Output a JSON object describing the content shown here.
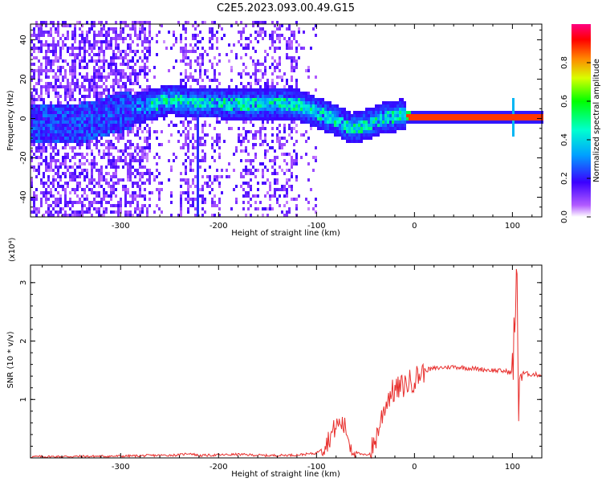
{
  "title": "C2E5.2023.093.00.49.G15",
  "chart_data": [
    {
      "type": "heatmap",
      "xlabel": "Height of straight line (km)",
      "ylabel": "Frequency (Hz)",
      "xlim": [
        -392,
        130
      ],
      "ylim": [
        -50,
        48
      ],
      "xticks": [
        -300,
        -200,
        -100,
        0,
        100
      ],
      "yticks": [
        -40,
        -20,
        0,
        20,
        40
      ],
      "colorbar": {
        "label": "Normalized spectral amplitude",
        "range": [
          0,
          1
        ],
        "ticks": [
          0.0,
          0.2,
          0.4,
          0.6,
          0.8
        ],
        "colormap": [
          "#ffffff",
          "#7b00ff",
          "#0000ff",
          "#00ffff",
          "#00ff00",
          "#ffff00",
          "#ff0000",
          "#ff0080"
        ]
      },
      "ridge": {
        "x": [
          -390,
          -350,
          -310,
          -270,
          -250,
          -230,
          -200,
          -170,
          -140,
          -120,
          -100,
          -80,
          -65,
          -50,
          -35,
          -25,
          -15,
          -5,
          0,
          50,
          100,
          130
        ],
        "freq": [
          -3,
          -4,
          1,
          6,
          9,
          7,
          7,
          6,
          7,
          6,
          2,
          -2,
          -6,
          -4,
          -1,
          0,
          1,
          0,
          0,
          0,
          0,
          0
        ]
      },
      "features": [
        {
          "x": -222,
          "freq_range": [
            -50,
            48
          ],
          "description": "narrow vertical streak"
        },
        {
          "x": 100,
          "freq_range": [
            -10,
            10
          ],
          "description": "spike"
        }
      ]
    },
    {
      "type": "line",
      "xlabel": "Height of straight line (km)",
      "ylabel": "SNR (10 * v/v)",
      "scale_note": "(x10⁴)",
      "xlim": [
        -392,
        130
      ],
      "ylim": [
        0,
        3.3
      ],
      "xticks": [
        -300,
        -200,
        -100,
        0,
        100
      ],
      "yticks": [
        1,
        2,
        3
      ],
      "color": "#e8302e",
      "x": [
        -392,
        -300,
        -240,
        -230,
        -220,
        -180,
        -150,
        -120,
        -100,
        -90,
        -80,
        -75,
        -70,
        -65,
        -60,
        -55,
        -50,
        -45,
        -40,
        -35,
        -30,
        -25,
        -20,
        -15,
        -10,
        -5,
        0,
        10,
        20,
        30,
        40,
        60,
        80,
        95,
        100,
        102,
        104,
        105,
        106,
        107,
        110,
        120,
        130
      ],
      "y": [
        0.02,
        0.03,
        0.05,
        0.08,
        0.04,
        0.06,
        0.04,
        0.05,
        0.08,
        0.25,
        0.55,
        0.6,
        0.5,
        0.2,
        0.1,
        0.06,
        0.05,
        0.08,
        0.3,
        0.6,
        0.9,
        1.1,
        1.15,
        1.2,
        1.25,
        1.3,
        1.35,
        1.5,
        1.53,
        1.55,
        1.56,
        1.53,
        1.5,
        1.48,
        1.45,
        2.2,
        2.8,
        3.25,
        0.7,
        1.45,
        1.45,
        1.43,
        1.42
      ]
    }
  ]
}
